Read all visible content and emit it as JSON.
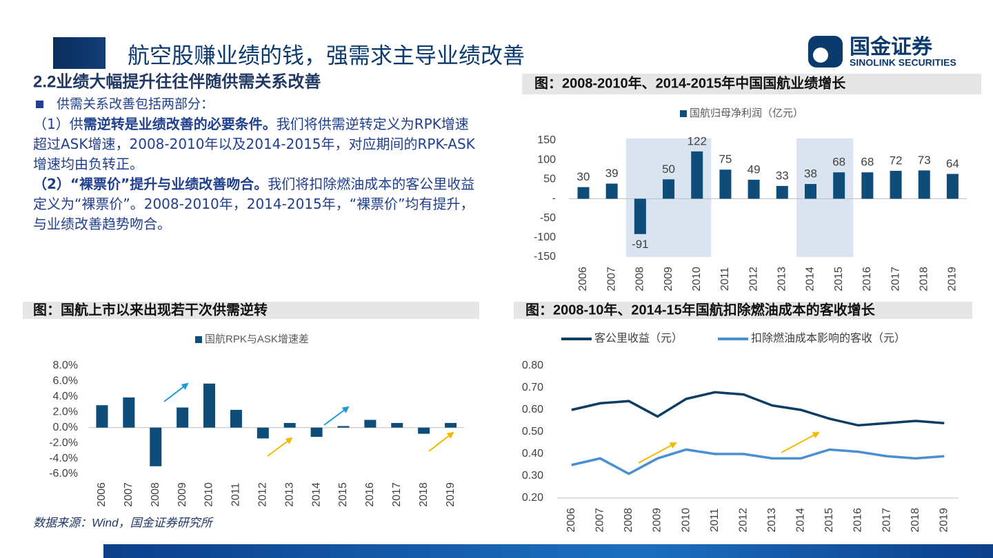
{
  "slide": {
    "title": "航空股赚业绩的钱，强需求主导业绩改善",
    "logo_cn": "国金证券",
    "logo_en": "SINOLINK SECURITIES",
    "section": "2.2业绩大幅提升往往伴随供需关系改善",
    "bullet": "供需关系改善包括两部分：",
    "paragraphs": [
      [
        {
          "text": "（1）供",
          "bold": false
        },
        {
          "text": "需逆转是业绩改善的必要条件。",
          "bold": true
        },
        {
          "text": "我们将供需逆转定义为RPK增速超过ASK增速，2008-2010年以及2014-2015年，对应期间的RPK-ASK增速均由负转正。",
          "bold": false
        }
      ],
      [
        {
          "text": "（2）“裸票价”提升与业绩改善吻合。",
          "bold": true
        },
        {
          "text": "我们将扣除燃油成本的客公里收益定义为“裸票价”。2008-2010年，2014-2015年，“裸票价”均有提升，与业绩改善趋势吻合。",
          "bold": false
        }
      ]
    ],
    "source": "数据来源：Wind，国金证券研究所"
  },
  "chart_data": [
    {
      "type": "bar",
      "title": "图：2008-2010年、2014-2015年中国国航业绩增长",
      "categories": [
        "2006",
        "2007",
        "2008",
        "2009",
        "2010",
        "2011",
        "2012",
        "2013",
        "2014",
        "2015",
        "2016",
        "2017",
        "2018",
        "2019"
      ],
      "series": [
        {
          "name": "国航归母净利润（亿元）",
          "color": "#0e4c7a",
          "values": [
            30,
            39,
            -91,
            50,
            122,
            75,
            49,
            33,
            38,
            68,
            68,
            72,
            73,
            64
          ]
        }
      ],
      "ylim": [
        -150,
        150
      ],
      "yticks": [
        150,
        100,
        50,
        {
          "value": 0,
          "label": "-"
        },
        -50,
        -100,
        -150
      ],
      "value_labels_shown": true,
      "highlights": [
        {
          "from": "2008",
          "to": "2010"
        },
        {
          "from": "2014",
          "to": "2015"
        }
      ]
    },
    {
      "type": "bar",
      "title": "图：国航上市以来出现若干次供需逆转",
      "categories": [
        "2006",
        "2007",
        "2008",
        "2009",
        "2010",
        "2011",
        "2012",
        "2013",
        "2014",
        "2015",
        "2016",
        "2017",
        "2018",
        "2019"
      ],
      "series": [
        {
          "name": "国航RPK与ASK增速差",
          "color": "#0e4c7a",
          "values": [
            2.9,
            3.9,
            -5.0,
            2.6,
            5.7,
            2.3,
            -1.4,
            0.6,
            -1.2,
            0.2,
            1.0,
            0.6,
            -0.8,
            0.6
          ]
        }
      ],
      "ylim": [
        -6,
        8
      ],
      "yticks": [
        {
          "value": 8,
          "label": "8.0%"
        },
        {
          "value": 6,
          "label": "6.0%"
        },
        {
          "value": 4,
          "label": "4.0%"
        },
        {
          "value": 2,
          "label": "2.0%"
        },
        {
          "value": 0,
          "label": "0.0%"
        },
        {
          "value": -2,
          "label": "-2.0%"
        },
        {
          "value": -4,
          "label": "-4.0%"
        },
        {
          "value": -6,
          "label": "-6.0%"
        }
      ]
    },
    {
      "type": "line",
      "title": "图：2008-10年、2014-15年国航扣除燃油成本的客收增长",
      "categories": [
        "2006",
        "2007",
        "2008",
        "2009",
        "2010",
        "2011",
        "2012",
        "2013",
        "2014",
        "2015",
        "2016",
        "2017",
        "2018",
        "2019"
      ],
      "series": [
        {
          "name": "客公里收益（元）",
          "color": "#0c3d63",
          "values": [
            0.6,
            0.63,
            0.64,
            0.57,
            0.65,
            0.68,
            0.67,
            0.62,
            0.6,
            0.56,
            0.53,
            0.54,
            0.55,
            0.54
          ]
        },
        {
          "name": "扣除燃油成本影响的客收（元）",
          "color": "#4a8fd1",
          "values": [
            0.35,
            0.38,
            0.31,
            0.38,
            0.42,
            0.4,
            0.4,
            0.38,
            0.38,
            0.42,
            0.41,
            0.39,
            0.38,
            0.39
          ]
        }
      ],
      "ylim": [
        0.2,
        0.8
      ],
      "yticks": [
        {
          "value": 0.8,
          "label": "0.80"
        },
        {
          "value": 0.7,
          "label": "0.70"
        },
        {
          "value": 0.6,
          "label": "0.60"
        },
        {
          "value": 0.5,
          "label": "0.50"
        },
        {
          "value": 0.4,
          "label": "0.40"
        },
        {
          "value": 0.3,
          "label": "0.30"
        },
        {
          "value": 0.2,
          "label": "0.20"
        }
      ]
    }
  ]
}
